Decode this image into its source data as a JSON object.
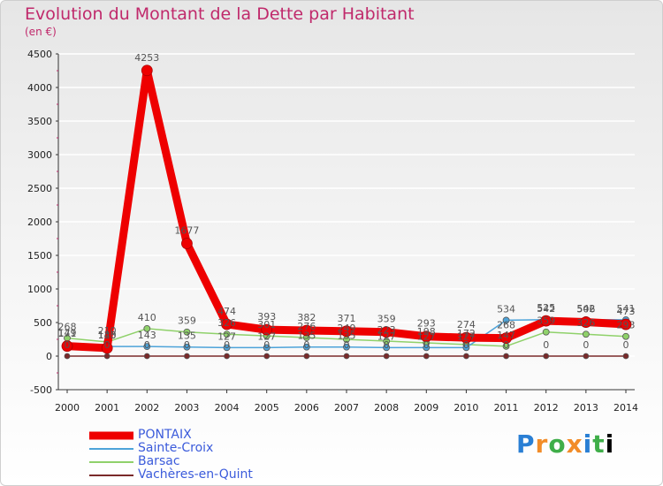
{
  "header": {
    "title": "Evolution du Montant de la Dette par Habitant",
    "subtitle": "(en €)"
  },
  "brand": {
    "logo_letters": [
      "P",
      "r",
      "o",
      "x",
      "i",
      "t",
      "i"
    ],
    "logo_text": "Proxiti"
  },
  "colors": {
    "title": "#c0296b",
    "grid": "#ffffff",
    "legend_text": "#3b5bdb"
  },
  "chart_data": {
    "type": "line",
    "title": "Evolution du Montant de la Dette par Habitant",
    "subtitle": "(en €)",
    "xlabel": "",
    "ylabel": "",
    "categories": [
      "2000",
      "2001",
      "2002",
      "2003",
      "2004",
      "2005",
      "2006",
      "2007",
      "2008",
      "2009",
      "2010",
      "2011",
      "2012",
      "2013",
      "2014"
    ],
    "ylim": [
      -500,
      4500
    ],
    "yticks": [
      -500,
      0,
      500,
      1000,
      1500,
      2000,
      2500,
      3000,
      3500,
      4000,
      4500
    ],
    "grid": true,
    "legend_position": "bottom-left",
    "series": [
      {
        "name": "PONTAIX",
        "color": "#ee0000",
        "width": 9,
        "marker": 6,
        "values": [
          149,
          120,
          4253,
          1677,
          474,
          393,
          382,
          371,
          359,
          293,
          274,
          268,
          525,
          506,
          473
        ],
        "labels": [
          "149",
          "120",
          "4253",
          "1677",
          "474",
          "393",
          "382",
          "371",
          "359",
          "293",
          "274",
          "268",
          "525",
          "506",
          "473"
        ]
      },
      {
        "name": "Sainte-Croix",
        "color": "#4da3d9",
        "width": 1.5,
        "marker": 3.5,
        "values": [
          171,
          143,
          143,
          135,
          127,
          127,
          135,
          135,
          127,
          127,
          127,
          534,
          542,
          542,
          541
        ],
        "labels": [
          "171",
          "143",
          "143",
          "135",
          "127",
          "127",
          "135",
          "135",
          "127",
          "127",
          "127",
          "534",
          "542",
          "542",
          "541"
        ]
      },
      {
        "name": "Barsac",
        "color": "#8fd16a",
        "width": 1.5,
        "marker": 3.5,
        "values": [
          268,
          210,
          410,
          359,
          326,
          301,
          276,
          249,
          223,
          198,
          172,
          147,
          359,
          326,
          293
        ],
        "labels": [
          "268",
          "210",
          "410",
          "359",
          "326",
          "301",
          "276",
          "249",
          "223",
          "198",
          "172",
          "147",
          "359",
          "326",
          "293"
        ]
      },
      {
        "name": "Vachères-en-Quint",
        "color": "#7a2a2a",
        "width": 1.5,
        "marker": 3,
        "values": [
          0,
          0,
          0,
          0,
          0,
          0,
          0,
          0,
          0,
          0,
          0,
          0,
          0,
          0,
          0
        ],
        "labels": [
          "0",
          "0",
          "0",
          "0",
          "0",
          "0",
          "0",
          "0",
          "0",
          "0",
          "0",
          "0",
          "0",
          "0",
          "0"
        ]
      }
    ]
  }
}
